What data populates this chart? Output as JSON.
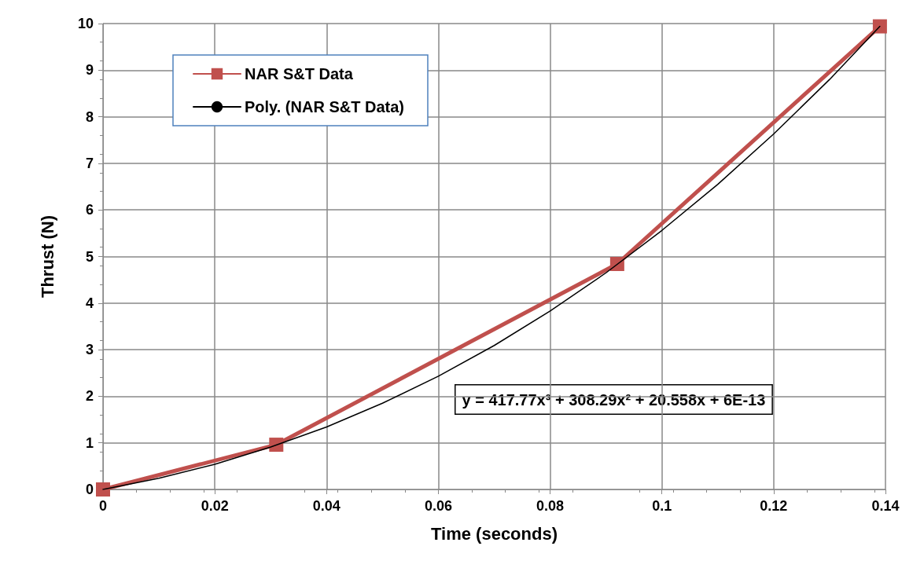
{
  "chart_data": {
    "type": "line",
    "xlabel": "Time (seconds)",
    "ylabel": "Thrust (N)",
    "xlim": [
      0,
      0.14
    ],
    "xticks": [
      0,
      0.02,
      0.04,
      0.06,
      0.08,
      0.1,
      0.12,
      0.14
    ],
    "ylim": [
      0,
      10
    ],
    "yticks": [
      0,
      1,
      2,
      3,
      4,
      5,
      6,
      7,
      8,
      9,
      10
    ],
    "grid": true,
    "legend": "top left",
    "series": [
      {
        "name": "NAR S&T Data",
        "color": "#c0504d",
        "marker": "square",
        "x": [
          0,
          0.031,
          0.092,
          0.139
        ],
        "values": [
          0,
          0.96,
          4.84,
          9.94
        ]
      },
      {
        "name": "Poly. (NAR S&T Data)",
        "color": "#000000",
        "marker": "none",
        "x": [
          0,
          0.01,
          0.02,
          0.03,
          0.04,
          0.05,
          0.06,
          0.07,
          0.08,
          0.09,
          0.1,
          0.11,
          0.12,
          0.13,
          0.139
        ],
        "values": [
          0,
          0.24,
          0.54,
          0.91,
          1.34,
          1.85,
          2.43,
          3.09,
          3.83,
          4.65,
          5.56,
          6.55,
          7.63,
          8.8,
          9.94
        ]
      }
    ],
    "annotations": [
      "y = 417.77x³ + 308.29x² + 20.558x + 6E-13"
    ]
  }
}
